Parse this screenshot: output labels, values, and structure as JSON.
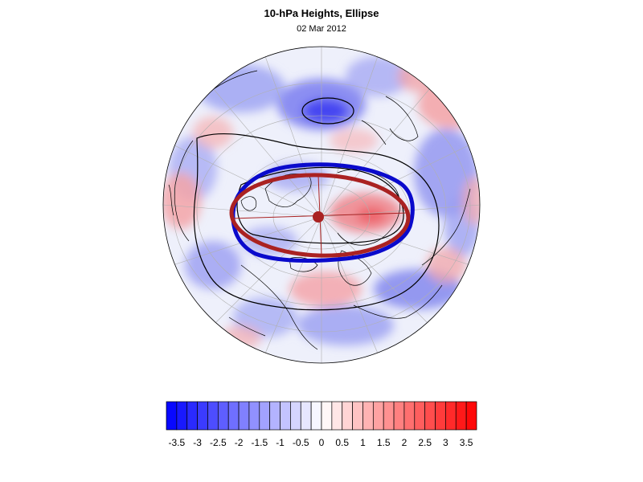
{
  "title": "10-hPa Heights, Ellipse",
  "subtitle": "02 Mar 2012",
  "colors": {
    "ellipse_observed": "#0a0acc",
    "ellipse_fit": "#aa2222",
    "contour": "#000000",
    "gridline": "#b0b0b0",
    "negative_max": "#0000ff",
    "positive_max": "#ff0000"
  },
  "colorbar": {
    "tick_labels": [
      "-3.5",
      "-3",
      "-2.5",
      "-2",
      "-1.5",
      "-1",
      "-0.5",
      "0",
      "0.5",
      "1",
      "1.5",
      "2",
      "2.5",
      "3",
      "3.5"
    ],
    "levels": [
      -3.75,
      -3.5,
      -3.25,
      -3,
      -2.75,
      -2.5,
      -2.25,
      -2,
      -1.75,
      -1.5,
      -1.25,
      -1,
      -0.75,
      -0.5,
      -0.25,
      0,
      0.25,
      0.5,
      0.75,
      1,
      1.25,
      1.5,
      1.75,
      2,
      2.25,
      2.5,
      2.75,
      3,
      3.25,
      3.5,
      3.75
    ]
  },
  "map": {
    "projection": "orthographic north polar",
    "features": [
      "height-anomaly-shading",
      "geopotential-contours",
      "observed-vortex-ellipse",
      "fitted-vortex-ellipse",
      "vortex-centroid",
      "coastlines",
      "lat-lon-grid"
    ]
  }
}
